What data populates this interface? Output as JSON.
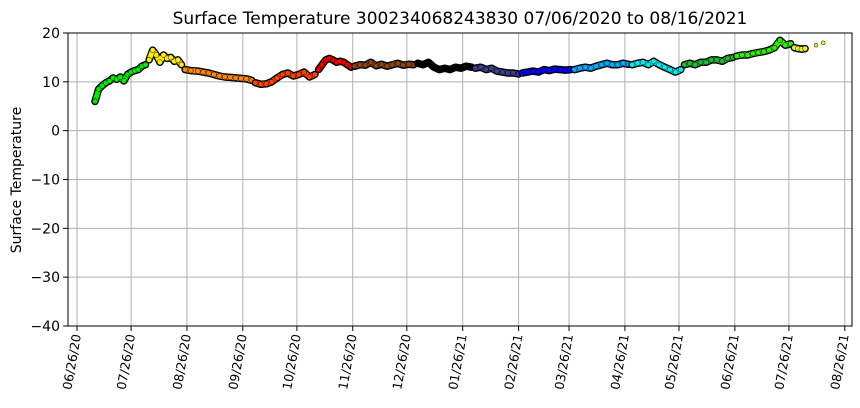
{
  "chart_data": {
    "type": "scatter",
    "title": "Surface Temperature 300234068243830  07/06/2020 to 08/16/2021",
    "xlabel": "",
    "ylabel": "Surface Temperature",
    "ylim": [
      -40,
      20
    ],
    "xlim": [
      "2020-06-21",
      "2021-08-30"
    ],
    "grid": true,
    "y_ticks": [
      20,
      10,
      0,
      -10,
      -20,
      -30,
      -40
    ],
    "y_tick_labels": [
      "20",
      "10",
      "0",
      "−10",
      "−20",
      "−30",
      "−40"
    ],
    "x_ticks": [
      "2020-06-26",
      "2020-07-26",
      "2020-08-26",
      "2020-09-26",
      "2020-10-26",
      "2020-11-26",
      "2020-12-26",
      "2021-01-26",
      "2021-02-26",
      "2021-03-26",
      "2021-04-26",
      "2021-05-26",
      "2021-06-26",
      "2021-07-26",
      "2021-08-26"
    ],
    "x_tick_labels": [
      "06/26/20",
      "07/26/20",
      "08/26/20",
      "09/26/20",
      "10/26/20",
      "11/26/20",
      "12/26/20",
      "01/26/21",
      "02/26/21",
      "03/26/21",
      "04/26/21",
      "05/26/21",
      "06/26/21",
      "07/26/21",
      "08/26/21"
    ],
    "series": [
      {
        "color": "#00ee00",
        "x": [
          "2020-07-06",
          "2020-07-08",
          "2020-07-10",
          "2020-07-12",
          "2020-07-14",
          "2020-07-16",
          "2020-07-18",
          "2020-07-20",
          "2020-07-22",
          "2020-07-24",
          "2020-07-26",
          "2020-07-28",
          "2020-07-30",
          "2020-08-01",
          "2020-08-03"
        ],
        "y": [
          6.0,
          8.5,
          9.2,
          9.8,
          10.2,
          10.8,
          10.5,
          11.0,
          10.2,
          11.5,
          12.0,
          12.3,
          12.5,
          13.2,
          13.5
        ]
      },
      {
        "color": "#ffee00",
        "x": [
          "2020-08-05",
          "2020-08-07",
          "2020-08-09",
          "2020-08-11",
          "2020-08-13",
          "2020-08-15",
          "2020-08-17",
          "2020-08-19",
          "2020-08-21",
          "2020-08-23"
        ],
        "y": [
          14.5,
          16.5,
          15.5,
          14.0,
          15.5,
          14.8,
          15.0,
          14.2,
          14.5,
          13.5
        ]
      },
      {
        "color": "#ff8800",
        "x": [
          "2020-08-25",
          "2020-08-28",
          "2020-09-01",
          "2020-09-04",
          "2020-09-07",
          "2020-09-10",
          "2020-09-13",
          "2020-09-16",
          "2020-09-19",
          "2020-09-22",
          "2020-09-25",
          "2020-09-28",
          "2020-10-01"
        ],
        "y": [
          12.5,
          12.3,
          12.2,
          12.0,
          11.8,
          11.5,
          11.2,
          11.0,
          10.9,
          10.8,
          10.7,
          10.6,
          10.3
        ]
      },
      {
        "color": "#ff4400",
        "x": [
          "2020-10-03",
          "2020-10-06",
          "2020-10-09",
          "2020-10-12",
          "2020-10-15",
          "2020-10-18",
          "2020-10-21",
          "2020-10-24",
          "2020-10-27",
          "2020-10-30",
          "2020-11-02",
          "2020-11-05"
        ],
        "y": [
          9.8,
          9.5,
          9.6,
          10.0,
          10.8,
          11.5,
          11.8,
          11.2,
          11.5,
          12.0,
          11.0,
          11.5
        ]
      },
      {
        "color": "#ee0000",
        "x": [
          "2020-11-07",
          "2020-11-09",
          "2020-11-11",
          "2020-11-13",
          "2020-11-15",
          "2020-11-17",
          "2020-11-19",
          "2020-11-21",
          "2020-11-23",
          "2020-11-25"
        ],
        "y": [
          12.5,
          13.5,
          14.5,
          14.8,
          14.5,
          14.0,
          14.2,
          14.0,
          13.5,
          13.0
        ]
      },
      {
        "color": "#8b4513",
        "x": [
          "2020-11-27",
          "2020-11-30",
          "2020-12-03",
          "2020-12-06",
          "2020-12-09",
          "2020-12-12",
          "2020-12-15",
          "2020-12-18",
          "2020-12-21",
          "2020-12-24",
          "2020-12-27",
          "2020-12-30"
        ],
        "y": [
          13.2,
          13.5,
          13.4,
          14.0,
          13.3,
          13.6,
          13.2,
          13.5,
          13.8,
          13.4,
          13.6,
          13.5
        ]
      },
      {
        "color": "#000000",
        "x": [
          "2021-01-01",
          "2021-01-04",
          "2021-01-07",
          "2021-01-10",
          "2021-01-13",
          "2021-01-16",
          "2021-01-19",
          "2021-01-22",
          "2021-01-25",
          "2021-01-28",
          "2021-01-31"
        ],
        "y": [
          13.8,
          13.5,
          14.0,
          13.0,
          12.5,
          12.8,
          12.5,
          13.0,
          12.8,
          13.2,
          13.0
        ]
      },
      {
        "color": "#3f3d8f",
        "x": [
          "2021-02-02",
          "2021-02-05",
          "2021-02-08",
          "2021-02-11",
          "2021-02-14",
          "2021-02-17",
          "2021-02-20",
          "2021-02-23",
          "2021-02-26"
        ],
        "y": [
          12.8,
          13.0,
          12.5,
          12.8,
          12.2,
          12.0,
          11.8,
          11.8,
          11.6
        ]
      },
      {
        "color": "#0000ff",
        "x": [
          "2021-02-28",
          "2021-03-03",
          "2021-03-06",
          "2021-03-09",
          "2021-03-12",
          "2021-03-15",
          "2021-03-18",
          "2021-03-21",
          "2021-03-24",
          "2021-03-27"
        ],
        "y": [
          11.8,
          12.0,
          12.2,
          12.0,
          12.5,
          12.3,
          12.6,
          12.5,
          12.4,
          12.5
        ]
      },
      {
        "color": "#00aaff",
        "x": [
          "2021-03-29",
          "2021-04-01",
          "2021-04-04",
          "2021-04-07",
          "2021-04-10",
          "2021-04-13",
          "2021-04-16",
          "2021-04-19",
          "2021-04-22",
          "2021-04-25",
          "2021-04-28"
        ],
        "y": [
          12.5,
          12.8,
          13.0,
          12.8,
          13.2,
          13.5,
          13.8,
          13.5,
          13.5,
          13.8,
          13.6
        ]
      },
      {
        "color": "#00eeee",
        "x": [
          "2021-04-30",
          "2021-05-03",
          "2021-05-06",
          "2021-05-09",
          "2021-05-12",
          "2021-05-15",
          "2021-05-18",
          "2021-05-21",
          "2021-05-24",
          "2021-05-27"
        ],
        "y": [
          13.5,
          13.8,
          14.0,
          13.5,
          14.2,
          13.5,
          13.0,
          12.5,
          12.0,
          12.5
        ]
      },
      {
        "color": "#22bb33",
        "x": [
          "2021-05-29",
          "2021-06-01",
          "2021-06-04",
          "2021-06-07",
          "2021-06-10",
          "2021-06-13",
          "2021-06-16",
          "2021-06-19",
          "2021-06-22",
          "2021-06-25"
        ],
        "y": [
          13.5,
          13.8,
          13.5,
          14.0,
          14.0,
          14.5,
          14.5,
          14.2,
          14.8,
          15.0
        ]
      },
      {
        "color": "#33ee00",
        "x": [
          "2021-06-27",
          "2021-06-30",
          "2021-07-03",
          "2021-07-06",
          "2021-07-09",
          "2021-07-12",
          "2021-07-15",
          "2021-07-18",
          "2021-07-21",
          "2021-07-24",
          "2021-07-27"
        ],
        "y": [
          15.3,
          15.5,
          15.5,
          15.8,
          16.0,
          16.2,
          16.5,
          17.0,
          18.5,
          17.5,
          17.8
        ]
      },
      {
        "color": "#eeee33",
        "x": [
          "2021-07-29",
          "2021-07-31",
          "2021-08-02",
          "2021-08-04",
          "2021-08-10",
          "2021-08-14"
        ],
        "y": [
          17.0,
          16.8,
          16.7,
          16.8,
          17.5,
          18.0
        ]
      }
    ]
  }
}
